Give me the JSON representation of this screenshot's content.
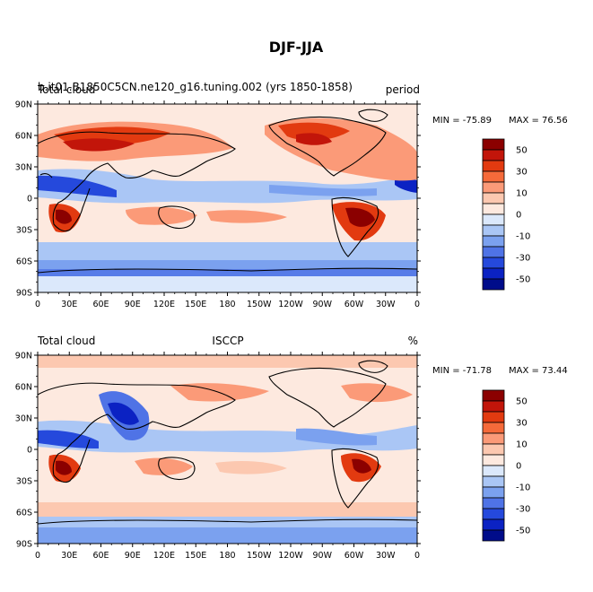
{
  "figure": {
    "title": "DJF-JJA"
  },
  "scale": {
    "levels": [
      "50",
      "30",
      "10",
      "0",
      "-10",
      "-30",
      "-50"
    ],
    "colors": [
      "#8b0000",
      "#c2150a",
      "#e23a10",
      "#f56a3a",
      "#fb9a78",
      "#fcc8b0",
      "#fde9df",
      "#dbe8fb",
      "#aac6f5",
      "#7ba1ef",
      "#4f73e6",
      "#2549dc",
      "#0b22c3",
      "#000c8a"
    ]
  },
  "colors": {
    "land_outline": "#000000"
  },
  "panels": [
    {
      "id": "model",
      "left_label": "Total cloud",
      "overlay_label": "b.it01.B1850C5CN.ne120_g16.tuning.002 (yrs 1850-1858)",
      "overlay_right": "period",
      "center_label": "",
      "right_label": "",
      "min_label": "MIN = -75.89",
      "max_label": "MAX =  76.56",
      "lat_ticks": [
        "90N",
        "60N",
        "30N",
        "0",
        "30S",
        "60S",
        "90S"
      ],
      "lon_ticks": [
        "0",
        "30E",
        "60E",
        "90E",
        "120E",
        "150E",
        "180",
        "150W",
        "120W",
        "90W",
        "60W",
        "30W",
        "0"
      ]
    },
    {
      "id": "obs",
      "left_label": "Total cloud",
      "overlay_label": "",
      "overlay_right": "",
      "center_label": "ISCCP",
      "right_label": "%",
      "min_label": "MIN = -71.78",
      "max_label": "MAX =  73.44",
      "lat_ticks": [
        "90N",
        "60N",
        "30N",
        "0",
        "30S",
        "60S",
        "90S"
      ],
      "lon_ticks": [
        "0",
        "30E",
        "60E",
        "90E",
        "120E",
        "150E",
        "180",
        "150W",
        "120W",
        "90W",
        "60W",
        "30W",
        "0"
      ]
    }
  ]
}
